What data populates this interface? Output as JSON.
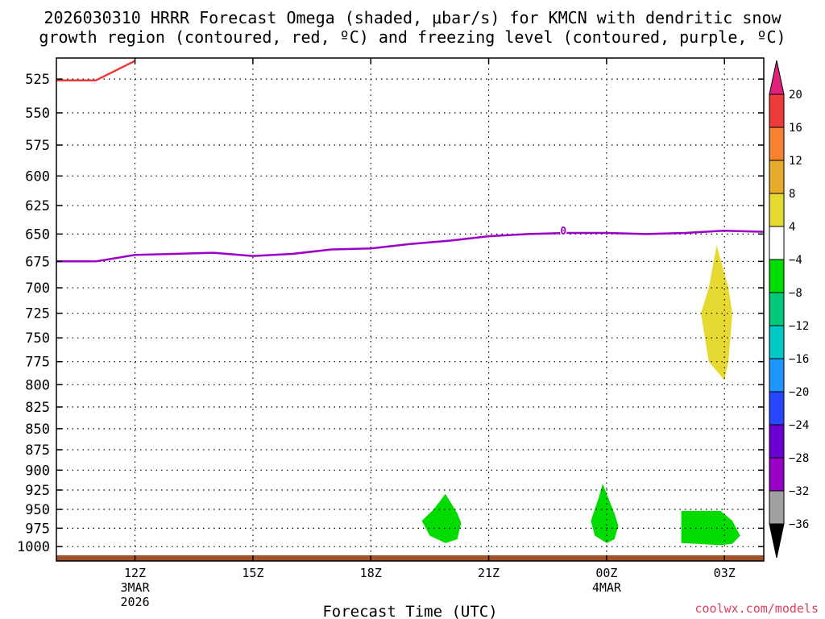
{
  "title": {
    "line1": "2026030310 HRRR Forecast Omega (shaded, μbar/s) for KMCN with dendritic snow",
    "line2": "growth region (contoured, red, ºC) and freezing level (contoured, purple, ºC)"
  },
  "watermark": "coolwx.com/models",
  "chart_data": {
    "type": "time-height",
    "xlabel": "Forecast Time (UTC)",
    "x_hours_range": [
      10,
      28
    ],
    "x_ticks": [
      {
        "hour": 12,
        "lines": [
          "12Z",
          "3MAR",
          "2026"
        ]
      },
      {
        "hour": 15,
        "lines": [
          "15Z"
        ]
      },
      {
        "hour": 18,
        "lines": [
          "18Z"
        ]
      },
      {
        "hour": 21,
        "lines": [
          "21Z"
        ]
      },
      {
        "hour": 24,
        "lines": [
          "00Z",
          "4MAR"
        ]
      },
      {
        "hour": 27,
        "lines": [
          "03Z"
        ]
      }
    ],
    "y_range_mb": [
      1020,
      510
    ],
    "y_ticks": [
      525,
      550,
      575,
      600,
      625,
      650,
      675,
      700,
      725,
      750,
      775,
      800,
      825,
      850,
      875,
      900,
      925,
      950,
      975,
      1000
    ],
    "grid": true,
    "freezing_level": {
      "color": "#9a00c8",
      "label": "0",
      "label_at": {
        "hour": 22.9,
        "mb": 647
      },
      "points": [
        [
          10,
          675
        ],
        [
          11,
          675
        ],
        [
          12,
          669
        ],
        [
          13,
          668
        ],
        [
          14,
          667
        ],
        [
          15,
          670
        ],
        [
          16,
          668
        ],
        [
          17,
          664
        ],
        [
          18,
          663
        ],
        [
          19,
          659
        ],
        [
          20,
          656
        ],
        [
          21,
          652
        ],
        [
          22,
          650
        ],
        [
          23,
          649
        ],
        [
          24,
          649
        ],
        [
          25,
          650
        ],
        [
          26,
          649
        ],
        [
          27,
          647
        ],
        [
          28,
          648
        ]
      ]
    },
    "dgz_contour": {
      "color": "#ee3a3a",
      "points": [
        [
          10,
          526
        ],
        [
          11,
          526
        ],
        [
          12,
          512
        ]
      ]
    },
    "omega_regions": [
      {
        "value_range": [
          4,
          8
        ],
        "color": "#e6d932",
        "points": [
          [
            26.8,
            660
          ],
          [
            27.1,
            700
          ],
          [
            27.2,
            725
          ],
          [
            27.1,
            775
          ],
          [
            27.0,
            795
          ],
          [
            26.6,
            775
          ],
          [
            26.4,
            725
          ],
          [
            26.6,
            700
          ]
        ]
      },
      {
        "value_range": [
          -8,
          -4
        ],
        "color": "#00dc00",
        "points": [
          [
            19.9,
            930
          ],
          [
            20.2,
            955
          ],
          [
            20.3,
            968
          ],
          [
            20.2,
            990
          ],
          [
            19.9,
            995
          ],
          [
            19.5,
            985
          ],
          [
            19.3,
            965
          ],
          [
            19.6,
            950
          ]
        ]
      },
      {
        "value_range": [
          -8,
          -4
        ],
        "color": "#00dc00",
        "points": [
          [
            23.9,
            917
          ],
          [
            24.2,
            955
          ],
          [
            24.3,
            972
          ],
          [
            24.2,
            990
          ],
          [
            24.0,
            995
          ],
          [
            23.7,
            985
          ],
          [
            23.6,
            965
          ],
          [
            23.8,
            935
          ]
        ]
      },
      {
        "value_range": [
          -8,
          -4
        ],
        "color": "#00dc00",
        "points": [
          [
            25.9,
            952
          ],
          [
            26.9,
            952
          ],
          [
            27.2,
            965
          ],
          [
            27.4,
            985
          ],
          [
            27.2,
            996
          ],
          [
            26.9,
            998
          ],
          [
            25.9,
            995
          ]
        ]
      }
    ],
    "surface": {
      "color": "#a0522d"
    },
    "colorbar": {
      "labels": [
        "20",
        "16",
        "12",
        "8",
        "4",
        "−4",
        "−8",
        "−12",
        "−16",
        "−20",
        "−24",
        "−28",
        "−32",
        "−36"
      ],
      "colors": [
        "#ee3a3a",
        "#f5822e",
        "#e8aa2a",
        "#e6d932",
        "#ffffff",
        "#00dc00",
        "#00c878",
        "#00c8c8",
        "#1e96ff",
        "#2846ff",
        "#6a00d2",
        "#9a00c8",
        "#a0a0a0"
      ],
      "top_arrow_color": "#e0207a",
      "bottom_arrow_color": "#000000"
    }
  }
}
